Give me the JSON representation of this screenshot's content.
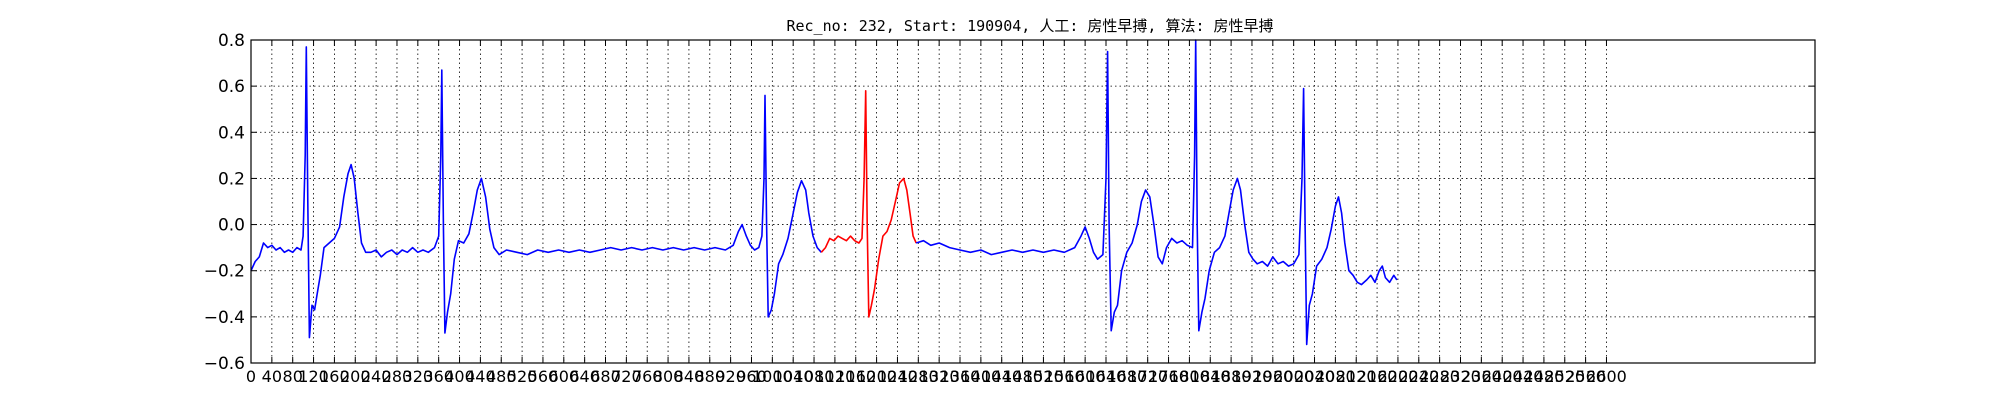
{
  "chart_data": {
    "type": "line",
    "title": "Rec_no: 232, Start: 190904, 人工: 房性早搏, 算法: 房性早搏",
    "xlabel": "",
    "ylabel": "",
    "xlim": [
      0,
      3000
    ],
    "ylim": [
      -0.6,
      0.8
    ],
    "grid": true,
    "yticks": [
      -0.6,
      -0.4,
      -0.2,
      0.0,
      0.2,
      0.4,
      0.6,
      0.8
    ],
    "ytick_labels": [
      "−0.6",
      "−0.4",
      "−0.2",
      "0.0",
      "0.2",
      "0.4",
      "0.6",
      "0.8"
    ],
    "xtick_labels": [
      "0",
      "40",
      "80",
      "120",
      "160",
      "200",
      "240",
      "280",
      "320",
      "360",
      "400",
      "440",
      "480",
      "520",
      "560",
      "600",
      "640",
      "680",
      "720",
      "760",
      "800",
      "840",
      "880",
      "920",
      "960",
      "1000",
      "1040",
      "1080",
      "1120",
      "1160",
      "1200",
      "1240",
      "1280",
      "1320",
      "1360",
      "1400",
      "1440",
      "1480",
      "1520",
      "1560",
      "1600",
      "1640",
      "1680",
      "1720",
      "1760",
      "1800",
      "1840",
      "1880",
      "1920",
      "1960",
      "2000",
      "2040",
      "2080",
      "2120",
      "2160",
      "2200",
      "2240",
      "2280",
      "2320",
      "2360",
      "2400",
      "2440",
      "2480",
      "2520",
      "2560",
      "2600"
    ],
    "series": [
      {
        "color": "#0000ff",
        "points": [
          [
            0,
            -0.2
          ],
          [
            8,
            -0.16
          ],
          [
            16,
            -0.14
          ],
          [
            24,
            -0.08
          ],
          [
            32,
            -0.1
          ],
          [
            40,
            -0.09
          ],
          [
            48,
            -0.11
          ],
          [
            56,
            -0.1
          ],
          [
            64,
            -0.12
          ],
          [
            72,
            -0.11
          ],
          [
            80,
            -0.12
          ],
          [
            88,
            -0.1
          ],
          [
            96,
            -0.11
          ],
          [
            100,
            -0.05
          ],
          [
            104,
            0.3
          ],
          [
            106,
            0.77
          ],
          [
            109,
            0.1
          ],
          [
            112,
            -0.49
          ],
          [
            117,
            -0.35
          ],
          [
            122,
            -0.37
          ],
          [
            127,
            -0.3
          ],
          [
            133,
            -0.22
          ],
          [
            140,
            -0.1
          ],
          [
            150,
            -0.08
          ],
          [
            160,
            -0.06
          ],
          [
            170,
            -0.01
          ],
          [
            178,
            0.12
          ],
          [
            186,
            0.22
          ],
          [
            192,
            0.26
          ],
          [
            198,
            0.2
          ],
          [
            205,
            0.05
          ],
          [
            212,
            -0.08
          ],
          [
            220,
            -0.12
          ],
          [
            230,
            -0.12
          ],
          [
            240,
            -0.11
          ],
          [
            250,
            -0.14
          ],
          [
            260,
            -0.12
          ],
          [
            270,
            -0.11
          ],
          [
            280,
            -0.13
          ],
          [
            290,
            -0.11
          ],
          [
            300,
            -0.12
          ],
          [
            310,
            -0.1
          ],
          [
            320,
            -0.12
          ],
          [
            330,
            -0.11
          ],
          [
            340,
            -0.12
          ],
          [
            352,
            -0.1
          ],
          [
            360,
            -0.05
          ],
          [
            364,
            0.3
          ],
          [
            366,
            0.67
          ],
          [
            369,
            0.0
          ],
          [
            372,
            -0.47
          ],
          [
            377,
            -0.38
          ],
          [
            383,
            -0.3
          ],
          [
            390,
            -0.15
          ],
          [
            398,
            -0.07
          ],
          [
            408,
            -0.08
          ],
          [
            418,
            -0.04
          ],
          [
            426,
            0.05
          ],
          [
            434,
            0.15
          ],
          [
            442,
            0.2
          ],
          [
            450,
            0.12
          ],
          [
            458,
            -0.02
          ],
          [
            466,
            -0.1
          ],
          [
            476,
            -0.13
          ],
          [
            490,
            -0.11
          ],
          [
            510,
            -0.12
          ],
          [
            530,
            -0.13
          ],
          [
            550,
            -0.11
          ],
          [
            570,
            -0.12
          ],
          [
            590,
            -0.11
          ],
          [
            610,
            -0.12
          ],
          [
            630,
            -0.11
          ],
          [
            650,
            -0.12
          ],
          [
            670,
            -0.11
          ],
          [
            690,
            -0.1
          ],
          [
            710,
            -0.11
          ],
          [
            730,
            -0.1
          ],
          [
            750,
            -0.11
          ],
          [
            770,
            -0.1
          ],
          [
            790,
            -0.11
          ],
          [
            810,
            -0.1
          ],
          [
            830,
            -0.11
          ],
          [
            850,
            -0.1
          ],
          [
            870,
            -0.11
          ],
          [
            890,
            -0.1
          ],
          [
            910,
            -0.11
          ],
          [
            925,
            -0.09
          ],
          [
            935,
            -0.03
          ],
          [
            942,
            0.0
          ],
          [
            950,
            -0.05
          ],
          [
            958,
            -0.09
          ],
          [
            966,
            -0.11
          ],
          [
            974,
            -0.1
          ],
          [
            980,
            -0.05
          ],
          [
            984,
            0.2
          ],
          [
            986,
            0.56
          ],
          [
            989,
            0.0
          ],
          [
            992,
            -0.4
          ],
          [
            998,
            -0.37
          ],
          [
            1004,
            -0.3
          ],
          [
            1012,
            -0.17
          ],
          [
            1020,
            -0.13
          ],
          [
            1030,
            -0.06
          ],
          [
            1040,
            0.05
          ],
          [
            1048,
            0.14
          ],
          [
            1056,
            0.19
          ],
          [
            1064,
            0.15
          ],
          [
            1070,
            0.05
          ],
          [
            1078,
            -0.05
          ],
          [
            1086,
            -0.1
          ],
          [
            1094,
            -0.12
          ]
        ]
      },
      {
        "color": "#ff0000",
        "points": [
          [
            1094,
            -0.12
          ],
          [
            1102,
            -0.1
          ],
          [
            1110,
            -0.06
          ],
          [
            1118,
            -0.07
          ],
          [
            1126,
            -0.05
          ],
          [
            1134,
            -0.06
          ],
          [
            1142,
            -0.07
          ],
          [
            1150,
            -0.05
          ],
          [
            1158,
            -0.07
          ],
          [
            1166,
            -0.08
          ],
          [
            1172,
            -0.06
          ],
          [
            1176,
            0.2
          ],
          [
            1179,
            0.58
          ],
          [
            1182,
            0.0
          ],
          [
            1185,
            -0.4
          ],
          [
            1190,
            -0.35
          ],
          [
            1196,
            -0.28
          ],
          [
            1204,
            -0.15
          ],
          [
            1212,
            -0.05
          ],
          [
            1220,
            -0.03
          ],
          [
            1228,
            0.02
          ],
          [
            1236,
            0.1
          ],
          [
            1244,
            0.18
          ],
          [
            1252,
            0.2
          ],
          [
            1258,
            0.15
          ],
          [
            1264,
            0.05
          ],
          [
            1270,
            -0.05
          ],
          [
            1276,
            -0.08
          ]
        ]
      },
      {
        "color": "#0000ff",
        "points": [
          [
            1276,
            -0.08
          ],
          [
            1290,
            -0.07
          ],
          [
            1304,
            -0.09
          ],
          [
            1320,
            -0.08
          ],
          [
            1340,
            -0.1
          ],
          [
            1360,
            -0.11
          ],
          [
            1380,
            -0.12
          ],
          [
            1400,
            -0.11
          ],
          [
            1420,
            -0.13
          ],
          [
            1440,
            -0.12
          ],
          [
            1460,
            -0.11
          ],
          [
            1480,
            -0.12
          ],
          [
            1500,
            -0.11
          ],
          [
            1520,
            -0.12
          ],
          [
            1540,
            -0.11
          ],
          [
            1560,
            -0.12
          ],
          [
            1580,
            -0.1
          ],
          [
            1592,
            -0.05
          ],
          [
            1600,
            -0.01
          ],
          [
            1608,
            -0.06
          ],
          [
            1616,
            -0.12
          ],
          [
            1624,
            -0.15
          ],
          [
            1634,
            -0.13
          ],
          [
            1640,
            0.2
          ],
          [
            1643,
            0.75
          ],
          [
            1646,
            0.0
          ],
          [
            1650,
            -0.46
          ],
          [
            1656,
            -0.38
          ],
          [
            1662,
            -0.35
          ],
          [
            1670,
            -0.2
          ],
          [
            1680,
            -0.12
          ],
          [
            1690,
            -0.08
          ],
          [
            1700,
            0.0
          ],
          [
            1708,
            0.1
          ],
          [
            1716,
            0.15
          ],
          [
            1724,
            0.12
          ],
          [
            1732,
            0.0
          ],
          [
            1740,
            -0.14
          ],
          [
            1748,
            -0.17
          ],
          [
            1756,
            -0.1
          ],
          [
            1766,
            -0.06
          ],
          [
            1776,
            -0.08
          ],
          [
            1786,
            -0.07
          ],
          [
            1796,
            -0.09
          ],
          [
            1806,
            -0.1
          ],
          [
            1810,
            0.3
          ],
          [
            1812,
            0.8
          ],
          [
            1815,
            0.0
          ],
          [
            1818,
            -0.46
          ],
          [
            1824,
            -0.38
          ],
          [
            1830,
            -0.32
          ],
          [
            1838,
            -0.2
          ],
          [
            1848,
            -0.12
          ],
          [
            1858,
            -0.1
          ],
          [
            1868,
            -0.05
          ],
          [
            1876,
            0.05
          ],
          [
            1884,
            0.15
          ],
          [
            1892,
            0.2
          ],
          [
            1898,
            0.15
          ],
          [
            1906,
            0.0
          ],
          [
            1914,
            -0.12
          ],
          [
            1922,
            -0.15
          ],
          [
            1930,
            -0.17
          ],
          [
            1940,
            -0.16
          ],
          [
            1950,
            -0.18
          ],
          [
            1960,
            -0.14
          ],
          [
            1970,
            -0.17
          ],
          [
            1980,
            -0.16
          ],
          [
            1990,
            -0.18
          ],
          [
            2000,
            -0.17
          ],
          [
            2010,
            -0.13
          ],
          [
            2016,
            0.2
          ],
          [
            2019,
            0.59
          ],
          [
            2022,
            0.0
          ],
          [
            2025,
            -0.52
          ],
          [
            2030,
            -0.35
          ],
          [
            2036,
            -0.3
          ],
          [
            2044,
            -0.18
          ],
          [
            2054,
            -0.15
          ],
          [
            2064,
            -0.1
          ],
          [
            2072,
            -0.02
          ],
          [
            2080,
            0.08
          ],
          [
            2086,
            0.12
          ],
          [
            2092,
            0.05
          ],
          [
            2098,
            -0.08
          ],
          [
            2106,
            -0.2
          ],
          [
            2114,
            -0.22
          ],
          [
            2122,
            -0.25
          ],
          [
            2130,
            -0.26
          ],
          [
            2140,
            -0.24
          ],
          [
            2148,
            -0.22
          ],
          [
            2156,
            -0.25
          ],
          [
            2164,
            -0.2
          ],
          [
            2170,
            -0.18
          ],
          [
            2176,
            -0.23
          ],
          [
            2184,
            -0.25
          ],
          [
            2192,
            -0.22
          ],
          [
            2198,
            -0.24
          ]
        ]
      }
    ]
  }
}
